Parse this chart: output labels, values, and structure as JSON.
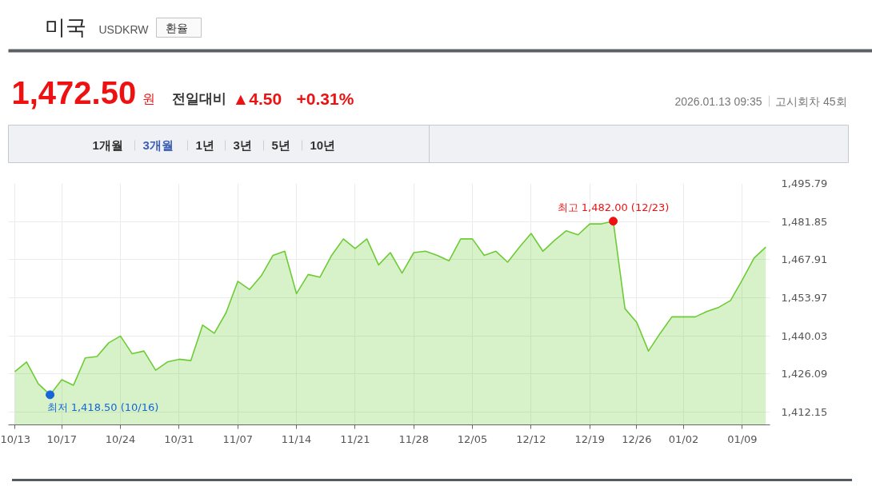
{
  "chart_data": {
    "type": "area",
    "title": "미국",
    "subtitle": "USDKRW",
    "categories": [
      "10/13",
      null,
      null,
      null,
      "10/17",
      null,
      null,
      null,
      null,
      "10/24",
      null,
      null,
      null,
      null,
      "10/31",
      null,
      null,
      null,
      null,
      "11/07",
      null,
      null,
      null,
      null,
      "11/14",
      null,
      null,
      null,
      null,
      "11/21",
      null,
      null,
      null,
      null,
      "11/28",
      null,
      null,
      null,
      null,
      "12/05",
      null,
      null,
      null,
      null,
      "12/12",
      null,
      null,
      null,
      null,
      "12/19",
      null,
      null,
      null,
      "12/26",
      null,
      null,
      null,
      "01/02",
      null,
      null,
      null,
      null,
      "01/09",
      null,
      null
    ],
    "values": [
      1427.0,
      1430.5,
      1422.5,
      1418.5,
      1424.0,
      1422.0,
      1432.0,
      1432.5,
      1437.5,
      1440.0,
      1433.5,
      1434.5,
      1427.5,
      1430.5,
      1431.5,
      1431.0,
      1444.0,
      1441.0,
      1448.5,
      1460.0,
      1457.0,
      1462.0,
      1469.5,
      1471.0,
      1455.5,
      1462.5,
      1461.5,
      1469.5,
      1475.5,
      1472.0,
      1475.5,
      1466.0,
      1470.5,
      1463.0,
      1470.5,
      1471.0,
      1469.5,
      1467.5,
      1475.5,
      1475.5,
      1469.5,
      1471.0,
      1467.0,
      1472.5,
      1477.5,
      1471.0,
      1475.0,
      1478.5,
      1477.0,
      1481.0,
      1481.0,
      1482.0,
      1450.0,
      1445.0,
      1434.5,
      1441.0,
      1447.0,
      1447.0,
      1447.0,
      1449.0,
      1450.5,
      1453.0,
      1460.5,
      1468.5,
      1472.5
    ],
    "color": "#6dcc35",
    "ylim": [
      1407.5,
      1495.79
    ],
    "yticks": [
      {
        "value": 1412.15,
        "label": "1,412.15"
      },
      {
        "value": 1426.09,
        "label": "1,426.09"
      },
      {
        "value": 1440.03,
        "label": "1,440.03"
      },
      {
        "value": 1453.97,
        "label": "1,453.97"
      },
      {
        "value": 1467.91,
        "label": "1,467.91"
      },
      {
        "value": 1481.85,
        "label": "1,481.85"
      },
      {
        "value": 1495.79,
        "label": "1,495.79"
      }
    ],
    "grid": true,
    "annotations": [
      "환율",
      "1,472.50",
      "원",
      "전일대비",
      "▲4.50",
      "+0.31%",
      "2026.01.13 09:35",
      "고시회차 45회",
      "1개월",
      "3개월",
      "1년",
      "3년",
      "5년",
      "10년",
      "최저 1,418.50 (10/16)",
      "최고 1,482.00 (12/23)"
    ]
  }
}
